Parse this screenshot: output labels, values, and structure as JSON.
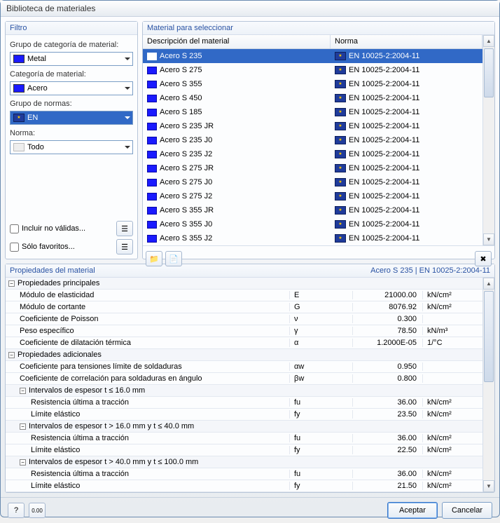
{
  "window": {
    "title": "Biblioteca de materiales"
  },
  "filter": {
    "title": "Filtro",
    "group_label": "Grupo de categoría de material:",
    "group_value": "Metal",
    "group_color": "#1a1aff",
    "category_label": "Categoría de material:",
    "category_value": "Acero",
    "category_color": "#1a1aff",
    "normgroup_label": "Grupo de normas:",
    "normgroup_value": "EN",
    "norm_label": "Norma:",
    "norm_value": "Todo",
    "include_invalid": "Incluir no válidas...",
    "only_favorites": "Sólo favoritos..."
  },
  "materials": {
    "title": "Material para seleccionar",
    "col_desc": "Descripción del material",
    "col_norm": "Norma",
    "rows": [
      {
        "desc": "Acero S 235",
        "norm": "EN 10025-2:2004-11",
        "sel": true
      },
      {
        "desc": "Acero S 275",
        "norm": "EN 10025-2:2004-11"
      },
      {
        "desc": "Acero S 355",
        "norm": "EN 10025-2:2004-11"
      },
      {
        "desc": "Acero S 450",
        "norm": "EN 10025-2:2004-11"
      },
      {
        "desc": "Acero S 185",
        "norm": "EN 10025-2:2004-11"
      },
      {
        "desc": "Acero S 235 JR",
        "norm": "EN 10025-2:2004-11"
      },
      {
        "desc": "Acero S 235 J0",
        "norm": "EN 10025-2:2004-11"
      },
      {
        "desc": "Acero S 235 J2",
        "norm": "EN 10025-2:2004-11"
      },
      {
        "desc": "Acero S 275 JR",
        "norm": "EN 10025-2:2004-11"
      },
      {
        "desc": "Acero S 275 J0",
        "norm": "EN 10025-2:2004-11"
      },
      {
        "desc": "Acero S 275 J2",
        "norm": "EN 10025-2:2004-11"
      },
      {
        "desc": "Acero S 355 JR",
        "norm": "EN 10025-2:2004-11"
      },
      {
        "desc": "Acero S 355 J0",
        "norm": "EN 10025-2:2004-11"
      },
      {
        "desc": "Acero S 355 J2",
        "norm": "EN 10025-2:2004-11"
      }
    ]
  },
  "props": {
    "title": "Propiedades del material",
    "selected": "Acero S 235  |  EN 10025-2:2004-11",
    "groups": {
      "main": "Propiedades principales",
      "add": "Propiedades adicionales",
      "t16": "Intervalos de espesor t ≤ 16.0 mm",
      "t40": "Intervalos de espesor t > 16.0 mm y t ≤ 40.0 mm",
      "t100": "Intervalos de espesor t > 40.0 mm y t ≤ 100.0 mm"
    },
    "rows": {
      "E": {
        "name": "Módulo de elasticidad",
        "sym": "E",
        "val": "21000.00",
        "unit": "kN/cm²"
      },
      "G": {
        "name": "Módulo de cortante",
        "sym": "G",
        "val": "8076.92",
        "unit": "kN/cm²"
      },
      "nu": {
        "name": "Coeficiente de Poisson",
        "sym": "ν",
        "val": "0.300",
        "unit": ""
      },
      "gamma": {
        "name": "Peso específico",
        "sym": "γ",
        "val": "78.50",
        "unit": "kN/m³"
      },
      "alpha": {
        "name": "Coeficiente de dilatación térmica",
        "sym": "α",
        "val": "1.2000E-05",
        "unit": "1/°C"
      },
      "aw": {
        "name": "Coeficiente para tensiones límite de soldaduras",
        "sym": "αw",
        "val": "0.950",
        "unit": ""
      },
      "bw": {
        "name": "Coeficiente de correlación para soldaduras en ángulo",
        "sym": "βw",
        "val": "0.800",
        "unit": ""
      },
      "fu16": {
        "name": "Resistencia última a tracción",
        "sym": "fu",
        "val": "36.00",
        "unit": "kN/cm²"
      },
      "fy16": {
        "name": "Límite elástico",
        "sym": "fy",
        "val": "23.50",
        "unit": "kN/cm²"
      },
      "fu40": {
        "name": "Resistencia última a tracción",
        "sym": "fu",
        "val": "36.00",
        "unit": "kN/cm²"
      },
      "fy40": {
        "name": "Límite elástico",
        "sym": "fy",
        "val": "22.50",
        "unit": "kN/cm²"
      },
      "fu100": {
        "name": "Resistencia última a tracción",
        "sym": "fu",
        "val": "36.00",
        "unit": "kN/cm²"
      },
      "fy100": {
        "name": "Límite elástico",
        "sym": "fy",
        "val": "21.50",
        "unit": "kN/cm²"
      }
    }
  },
  "buttons": {
    "ok": "Aceptar",
    "cancel": "Cancelar"
  }
}
